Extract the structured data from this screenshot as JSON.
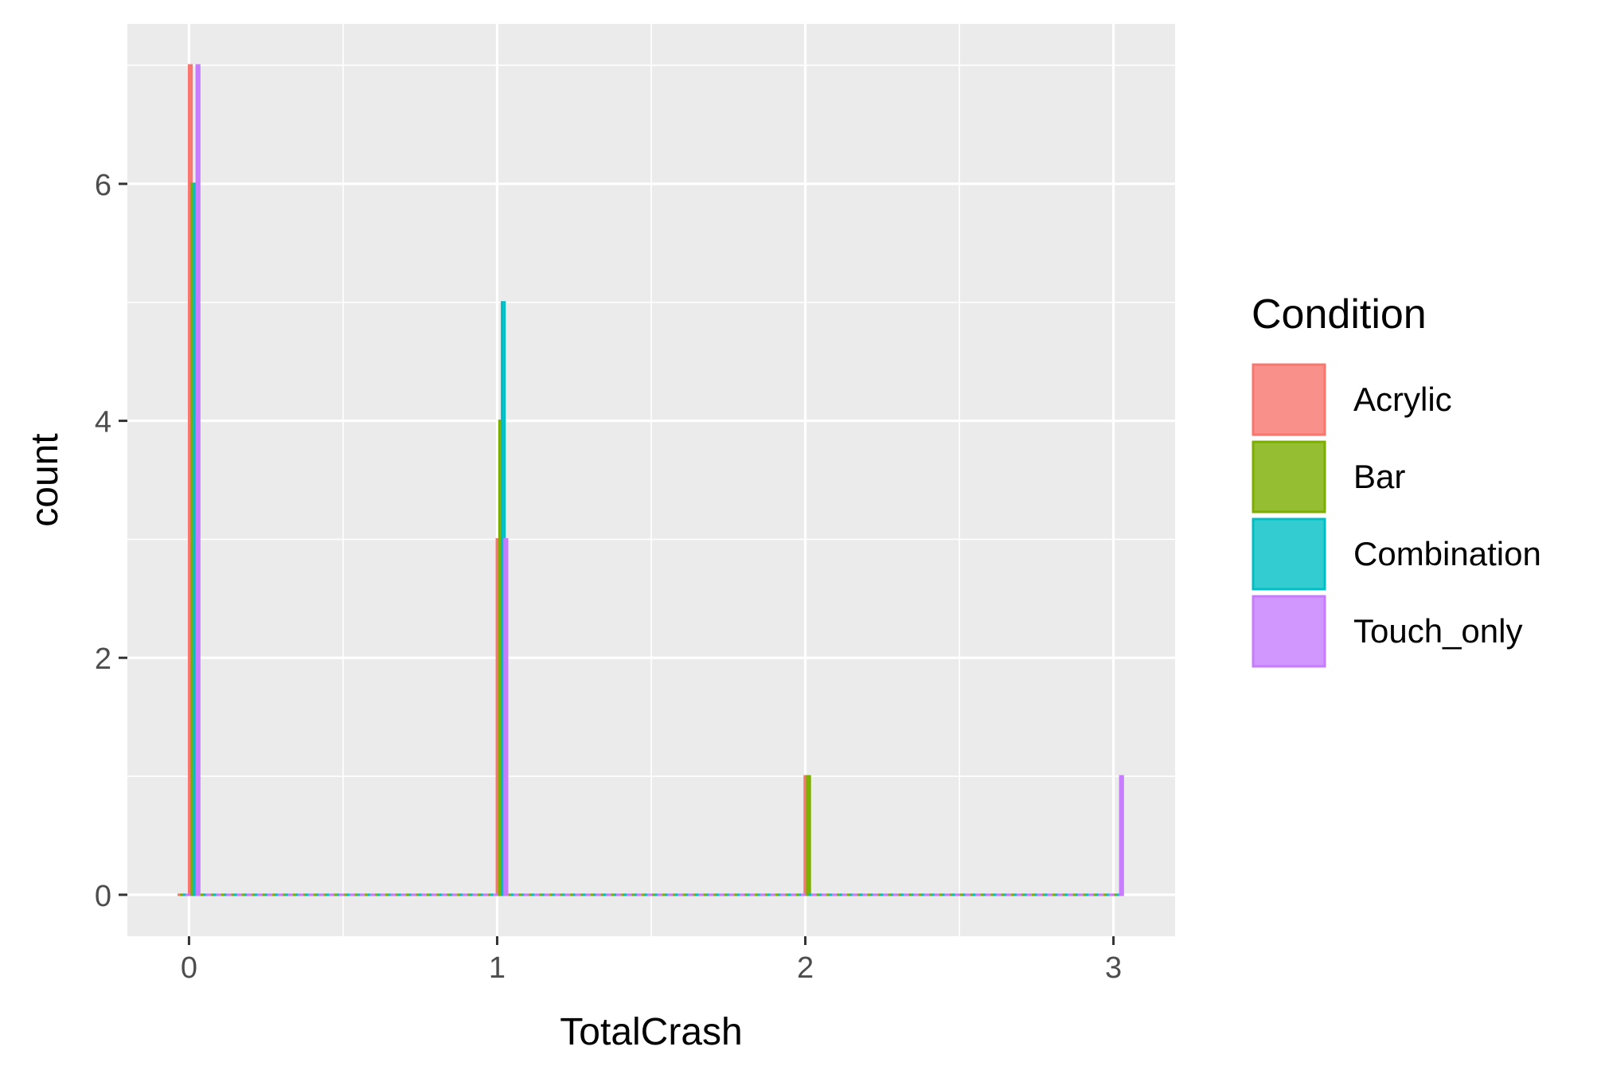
{
  "chart_data": {
    "type": "histogram",
    "xlabel": "TotalCrash",
    "ylabel": "count",
    "x_ticks": [
      0,
      1,
      2,
      3
    ],
    "y_ticks": [
      0,
      2,
      4,
      6
    ],
    "xlim": [
      -0.2,
      3.2
    ],
    "ylim": [
      -0.35,
      7.35
    ],
    "bin_width": 0.0333,
    "x_start": -0.0333,
    "bin_offsets": [
      0,
      0.25,
      0.5,
      0.75
    ],
    "grid": true,
    "legend": {
      "title": "Condition",
      "position": "right"
    },
    "series": [
      {
        "name": "Acrylic",
        "color": "#F8766D",
        "bars": [
          {
            "x": 0,
            "count": 7
          },
          {
            "x": 1,
            "count": 3
          },
          {
            "x": 2,
            "count": 1
          },
          {
            "x": 3,
            "count": 0
          }
        ]
      },
      {
        "name": "Bar",
        "color": "#7CAE00",
        "bars": [
          {
            "x": 0,
            "count": 6
          },
          {
            "x": 1,
            "count": 4
          },
          {
            "x": 2,
            "count": 1
          },
          {
            "x": 3,
            "count": 0
          }
        ]
      },
      {
        "name": "Combination",
        "color": "#00BFC4",
        "bars": [
          {
            "x": 0,
            "count": 6
          },
          {
            "x": 1,
            "count": 5
          },
          {
            "x": 2,
            "count": 0
          },
          {
            "x": 3,
            "count": 0
          }
        ]
      },
      {
        "name": "Touch_only",
        "color": "#C77CFF",
        "bars": [
          {
            "x": 0,
            "count": 7
          },
          {
            "x": 1,
            "count": 3
          },
          {
            "x": 2,
            "count": 0
          },
          {
            "x": 3,
            "count": 1
          }
        ]
      }
    ]
  }
}
